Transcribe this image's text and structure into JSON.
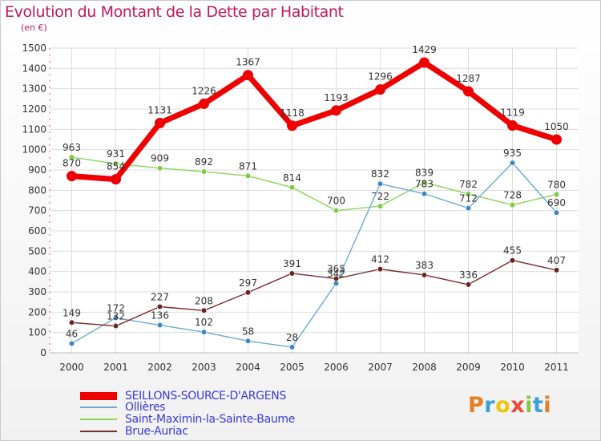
{
  "header": {
    "title": "Evolution du Montant de la Dette par Habitant",
    "unit": "(en €)"
  },
  "brand": {
    "letters": [
      "P",
      "r",
      "o",
      "x",
      "i",
      "t",
      "i"
    ],
    "colors": [
      "#e67e22",
      "#3aa0d8",
      "#f1c40f",
      "#e74c3c",
      "#8bc34a",
      "#3aa0d8",
      "#e67e22"
    ]
  },
  "chart_data": {
    "type": "line",
    "title": "Evolution du Montant de la Dette par Habitant",
    "ylabel": "(en €)",
    "xlabel": "",
    "x": [
      "2000",
      "2001",
      "2002",
      "2003",
      "2004",
      "2005",
      "2006",
      "2007",
      "2008",
      "2009",
      "2010",
      "2011"
    ],
    "ylim": [
      0,
      1500
    ],
    "yticks": [
      0,
      100,
      200,
      300,
      400,
      500,
      600,
      700,
      800,
      900,
      1000,
      1100,
      1200,
      1300,
      1400,
      1500
    ],
    "grid": true,
    "legend_position": "bottom-left",
    "series": [
      {
        "name": "Saint-Maximin-la-Sainte-Baume",
        "color": "#8cd35a",
        "marker": "#7ccb46",
        "values": [
          963,
          931,
          909,
          892,
          871,
          814,
          700,
          722,
          839,
          782,
          728,
          780
        ],
        "labels": [
          "963",
          "931",
          "909",
          "892",
          "871",
          "814",
          "700",
          "722",
          "839",
          "782",
          "728",
          "780"
        ]
      },
      {
        "name": "Ollières",
        "color": "#6aa9d4",
        "marker": "#3f86c6",
        "values": [
          46,
          172,
          136,
          102,
          58,
          28,
          342,
          832,
          783,
          712,
          935,
          690
        ],
        "labels": [
          "46",
          "172",
          "136",
          "102",
          "58",
          "28",
          "342",
          "832",
          "783",
          "712",
          "935",
          "690"
        ]
      },
      {
        "name": "Brue-Auriac",
        "color": "#7a2b2b",
        "marker": "#6b2222",
        "values": [
          149,
          132,
          227,
          208,
          297,
          391,
          365,
          412,
          383,
          336,
          455,
          407
        ],
        "labels": [
          "149",
          "132",
          "227",
          "208",
          "297",
          "391",
          "365",
          "412",
          "383",
          "336",
          "455",
          "407"
        ]
      },
      {
        "name": "SEILLONS-SOURCE-D'ARGENS",
        "color": "#ee0000",
        "marker": "#ee0000",
        "values": [
          870,
          854,
          1131,
          1226,
          1367,
          1118,
          1193,
          1296,
          1429,
          1287,
          1119,
          1050
        ],
        "labels": [
          "870",
          "854",
          "1131",
          "1226",
          "1367",
          "1118",
          "1193",
          "1296",
          "1429",
          "1287",
          "1119",
          "1050"
        ]
      }
    ]
  },
  "legend": [
    {
      "label": "SEILLONS-SOURCE-D'ARGENS",
      "color": "#ee0000",
      "thickness": "thick"
    },
    {
      "label": "Ollières",
      "color": "#6aa9d4",
      "thickness": "thin"
    },
    {
      "label": "Saint-Maximin-la-Sainte-Baume",
      "color": "#8cd35a",
      "thickness": "thin"
    },
    {
      "label": "Brue-Auriac",
      "color": "#7a2b2b",
      "thickness": "thin"
    }
  ]
}
